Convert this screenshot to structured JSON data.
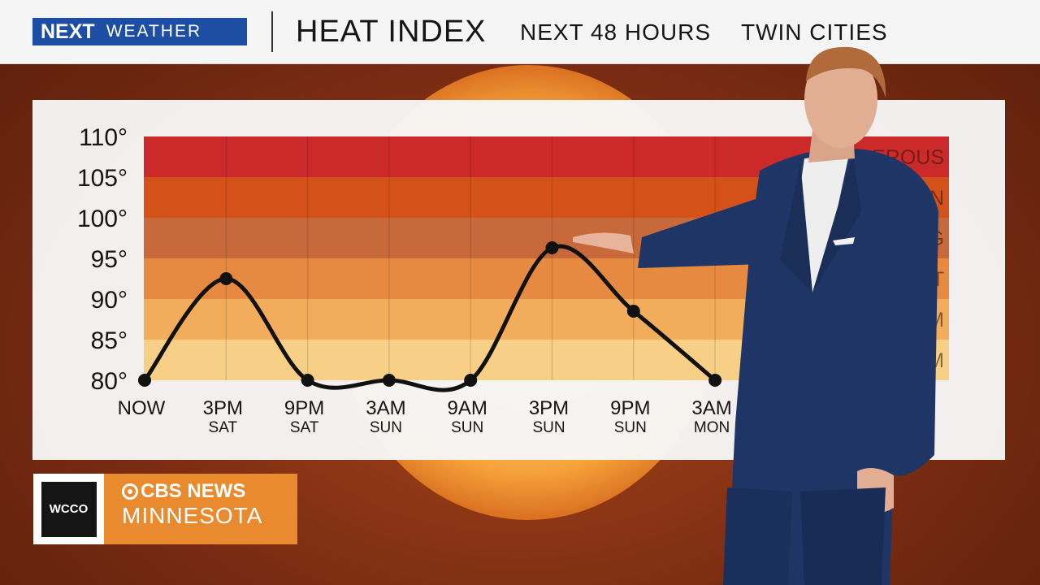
{
  "header": {
    "logo_next": "NEXT",
    "logo_weather": "WEATHER",
    "title": "HEAT INDEX",
    "subtitle_time": "NEXT 48 HOURS",
    "subtitle_place": "TWIN CITIES"
  },
  "branding": {
    "station": "WCCO",
    "network": "CBS NEWS",
    "region": "MINNESOTA"
  },
  "chart_data": {
    "type": "line",
    "title": "HEAT INDEX",
    "x": [
      "NOW",
      "3PM SAT",
      "9PM SAT",
      "3AM SUN",
      "9AM SUN",
      "3PM SUN",
      "9PM SUN",
      "3AM MON"
    ],
    "x_ticks": [
      {
        "top": "NOW",
        "bottom": ""
      },
      {
        "top": "3PM",
        "bottom": "SAT"
      },
      {
        "top": "9PM",
        "bottom": "SAT"
      },
      {
        "top": "3AM",
        "bottom": "SUN"
      },
      {
        "top": "9AM",
        "bottom": "SUN"
      },
      {
        "top": "3PM",
        "bottom": "SUN"
      },
      {
        "top": "9PM",
        "bottom": "SUN"
      },
      {
        "top": "3AM",
        "bottom": "MON"
      }
    ],
    "series": [
      {
        "values": [
          80,
          92.5,
          80,
          80,
          80,
          96.3,
          88.5,
          80
        ]
      }
    ],
    "y_ticks": [
      "80°",
      "85°",
      "90°",
      "95°",
      "100°",
      "105°",
      "110°"
    ],
    "ylim": [
      80,
      110
    ],
    "bands": [
      {
        "from": 105,
        "to": 110,
        "color": "#cc2a2a",
        "label": "DANGEROUS"
      },
      {
        "from": 100,
        "to": 105,
        "color": "#d4521a",
        "label": "CAUTION"
      },
      {
        "from": 95,
        "to": 100,
        "color": "#c8693b",
        "label": "CONCERNING"
      },
      {
        "from": 90,
        "to": 95,
        "color": "#e68a42",
        "label": "HOT"
      },
      {
        "from": 85,
        "to": 90,
        "color": "#f2ad5c",
        "label": "WARM"
      },
      {
        "from": 80,
        "to": 85,
        "color": "#f8cf86",
        "label": "CALM"
      }
    ],
    "line_color": "#111111",
    "grid": true
  }
}
